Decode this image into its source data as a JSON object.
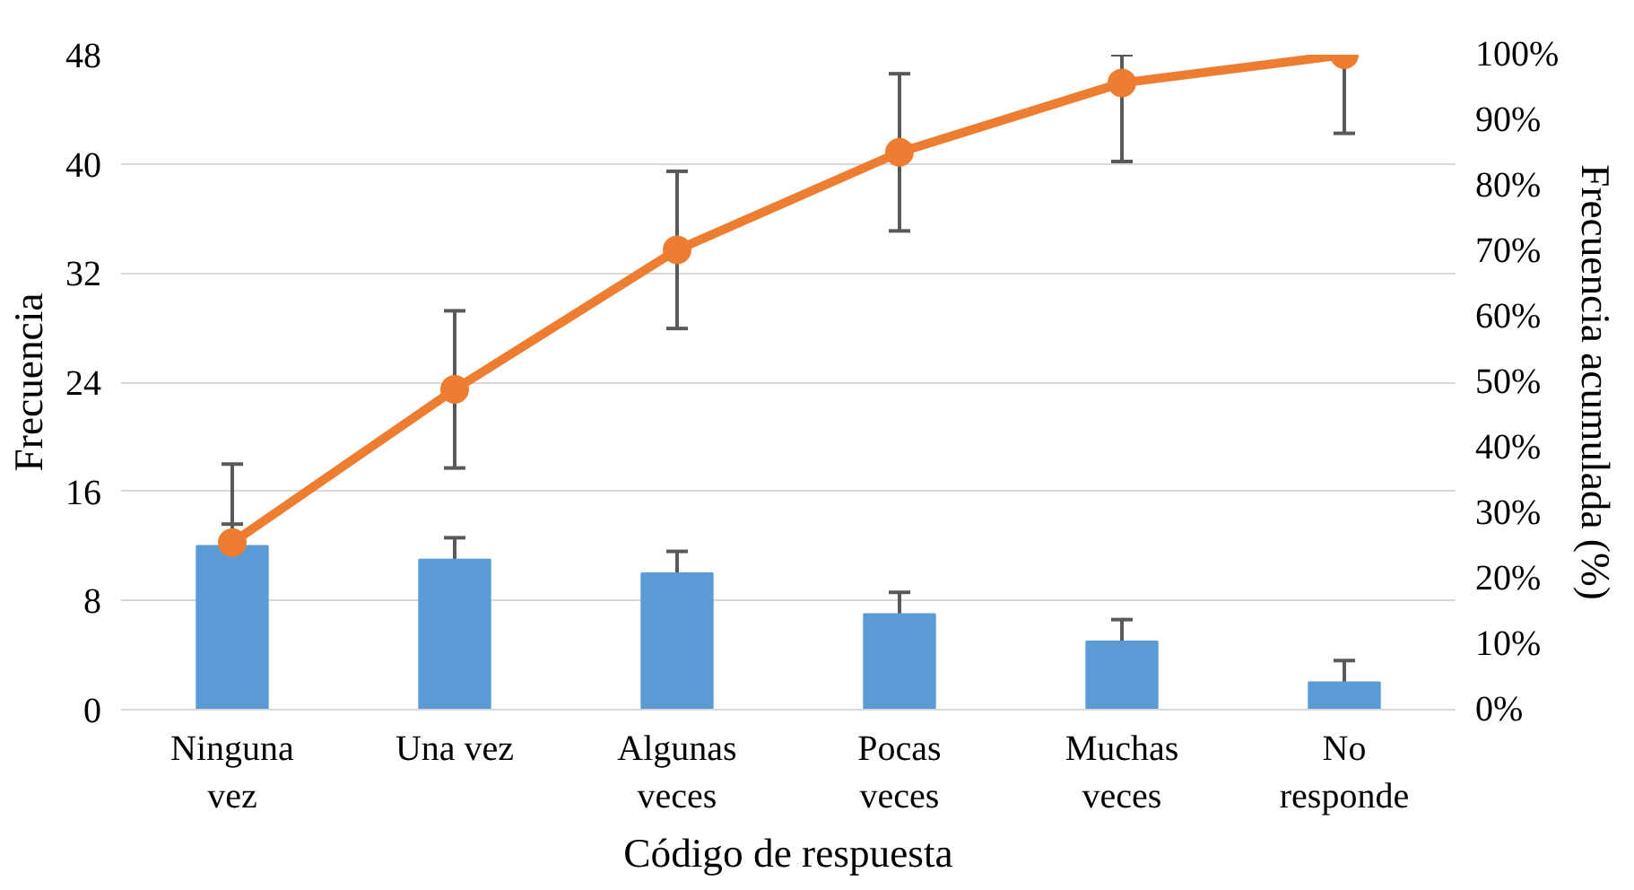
{
  "chart_data": {
    "type": "bar",
    "xlabel": "Código de respuesta",
    "ylabel": "Frecuencia",
    "y2label": "Frecuencia acumulada (%)",
    "categories": [
      "Ninguna vez",
      "Una vez",
      "Algunas veces",
      "Pocas veces",
      "Muchas veces",
      "No responde"
    ],
    "series": [
      {
        "color": "#5b9bd5",
        "values": [
          12,
          11,
          10,
          7,
          5,
          2
        ],
        "errors": [
          1.6,
          1.6,
          1.6,
          1.6,
          1.6,
          1.6
        ]
      },
      {
        "type": "line",
        "axis": "y2",
        "color": "#ed7d31",
        "marker": "circle",
        "line_style": "solid",
        "values": [
          25.5,
          48.9,
          70.2,
          85.1,
          95.7,
          100
        ],
        "errors": [
          12,
          12,
          12,
          12,
          [
            83.7,
            100
          ],
          [
            88,
            100
          ]
        ]
      }
    ],
    "ylim": [
      0,
      48
    ],
    "yticks": [
      0,
      8,
      16,
      24,
      32,
      40,
      48
    ],
    "y2lim": [
      0,
      100
    ],
    "y2ticks": [
      {
        "value": 0,
        "label": "0%"
      },
      {
        "value": 10,
        "label": "10%"
      },
      {
        "value": 20,
        "label": "20%"
      },
      {
        "value": 30,
        "label": "30%"
      },
      {
        "value": 40,
        "label": "40%"
      },
      {
        "value": 50,
        "label": "50%"
      },
      {
        "value": 60,
        "label": "60%"
      },
      {
        "value": 70,
        "label": "70%"
      },
      {
        "value": 80,
        "label": "80%"
      },
      {
        "value": 90,
        "label": "90%"
      },
      {
        "value": 100,
        "label": "100%"
      }
    ],
    "grid": "y"
  }
}
